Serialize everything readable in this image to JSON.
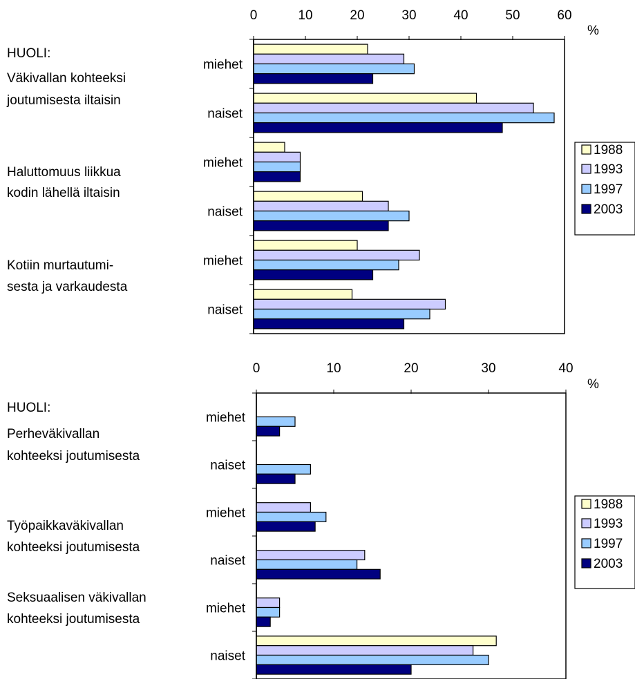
{
  "colors": {
    "1988": "#FFFFCC",
    "1993": "#CCCCFF",
    "1997": "#99CCFF",
    "2003": "#000080"
  },
  "chart_data": [
    {
      "type": "bar",
      "orientation": "horizontal",
      "unit": "%",
      "xlim": [
        0,
        60
      ],
      "ticks": [
        "0",
        "10",
        "20",
        "30",
        "40",
        "50",
        "60"
      ],
      "legend": [
        "1988",
        "1993",
        "1997",
        "2003"
      ],
      "legend_position": "right",
      "groups": [
        {
          "label": [
            "HUOLI:",
            "Väkivallan kohteeksi",
            "joutumisesta iltaisin"
          ]
        },
        {
          "label": [
            "Haluttomuus liikkua",
            "kodin lähellä iltaisin"
          ]
        },
        {
          "label": [
            "Kotiin murtautumi-",
            "sesta ja varkaudesta"
          ]
        }
      ],
      "categories": [
        "miehet",
        "naiset",
        "miehet",
        "naiset",
        "miehet",
        "naiset"
      ],
      "series": [
        {
          "name": "1988",
          "values": [
            22,
            43,
            6,
            21,
            20,
            19
          ]
        },
        {
          "name": "1993",
          "values": [
            29,
            54,
            9,
            26,
            32,
            37
          ]
        },
        {
          "name": "1997",
          "values": [
            31,
            58,
            9,
            30,
            28,
            34
          ]
        },
        {
          "name": "2003",
          "values": [
            23,
            48,
            9,
            26,
            23,
            29
          ]
        }
      ]
    },
    {
      "type": "bar",
      "orientation": "horizontal",
      "unit": "%",
      "xlim": [
        0,
        40
      ],
      "ticks": [
        "0",
        "10",
        "20",
        "30",
        "40"
      ],
      "legend": [
        "1988",
        "1993",
        "1997",
        "2003"
      ],
      "legend_position": "right",
      "groups": [
        {
          "label": [
            "HUOLI:",
            "Perheväkivallan",
            "kohteeksi joutumisesta"
          ]
        },
        {
          "label": [
            "Työpaikkaväkivallan",
            "kohteeksi joutumisesta"
          ]
        },
        {
          "label": [
            "Seksuaalisen väkivallan",
            "kohteeksi joutumisesta"
          ]
        }
      ],
      "categories": [
        "miehet",
        "naiset",
        "miehet",
        "naiset",
        "miehet",
        "naiset"
      ],
      "series": [
        {
          "name": "1988",
          "values": [
            0,
            0,
            0,
            0,
            0,
            31
          ]
        },
        {
          "name": "1993",
          "values": [
            0,
            0,
            7,
            14,
            3,
            28
          ]
        },
        {
          "name": "1997",
          "values": [
            5,
            7,
            9,
            13,
            3,
            30
          ]
        },
        {
          "name": "2003",
          "values": [
            3,
            5,
            7.6,
            16,
            1.8,
            20
          ]
        }
      ]
    }
  ]
}
